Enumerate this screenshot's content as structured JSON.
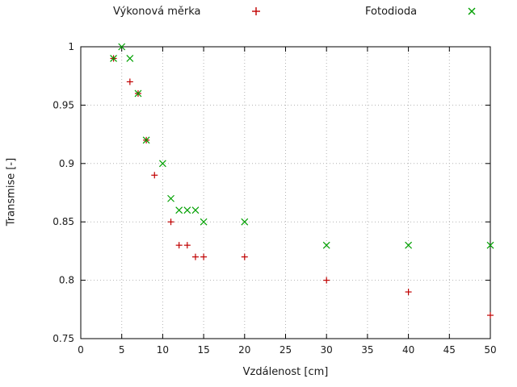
{
  "chart_data": {
    "type": "scatter",
    "title": "",
    "xlabel": "Vzdálenost [cm]",
    "ylabel": "Transmise [-]",
    "xlim": [
      0,
      50
    ],
    "ylim": [
      0.75,
      1
    ],
    "xticks": [
      0,
      5,
      10,
      15,
      20,
      25,
      30,
      35,
      40,
      45,
      50
    ],
    "xtick_labels": [
      "0",
      "5",
      "10",
      "15",
      "20",
      "25",
      "30",
      "35",
      "40",
      "45",
      "50"
    ],
    "yticks": [
      0.75,
      0.8,
      0.85,
      0.9,
      0.95,
      1
    ],
    "ytick_labels": [
      "0.75",
      "0.8",
      "0.85",
      "0.9",
      "0.95",
      "1"
    ],
    "grid": true,
    "grid_style": "dotted",
    "legend_position": "top",
    "series": [
      {
        "name": "Výkonová měrka",
        "marker": "plus",
        "color": "#c00000",
        "points": [
          [
            4,
            0.99
          ],
          [
            6,
            0.97
          ],
          [
            7,
            0.96
          ],
          [
            8,
            0.92
          ],
          [
            9,
            0.89
          ],
          [
            11,
            0.85
          ],
          [
            12,
            0.83
          ],
          [
            13,
            0.83
          ],
          [
            14,
            0.82
          ],
          [
            15,
            0.82
          ],
          [
            20,
            0.82
          ],
          [
            30,
            0.8
          ],
          [
            40,
            0.79
          ],
          [
            50,
            0.77
          ]
        ]
      },
      {
        "name": "Fotodioda",
        "marker": "cross",
        "color": "#00a000",
        "points": [
          [
            4,
            0.99
          ],
          [
            5,
            1.0
          ],
          [
            6,
            0.99
          ],
          [
            7,
            0.96
          ],
          [
            8,
            0.92
          ],
          [
            10,
            0.9
          ],
          [
            11,
            0.87
          ],
          [
            12,
            0.86
          ],
          [
            13,
            0.86
          ],
          [
            14,
            0.86
          ],
          [
            15,
            0.85
          ],
          [
            20,
            0.85
          ],
          [
            30,
            0.83
          ],
          [
            40,
            0.83
          ],
          [
            50,
            0.83
          ]
        ]
      }
    ]
  }
}
